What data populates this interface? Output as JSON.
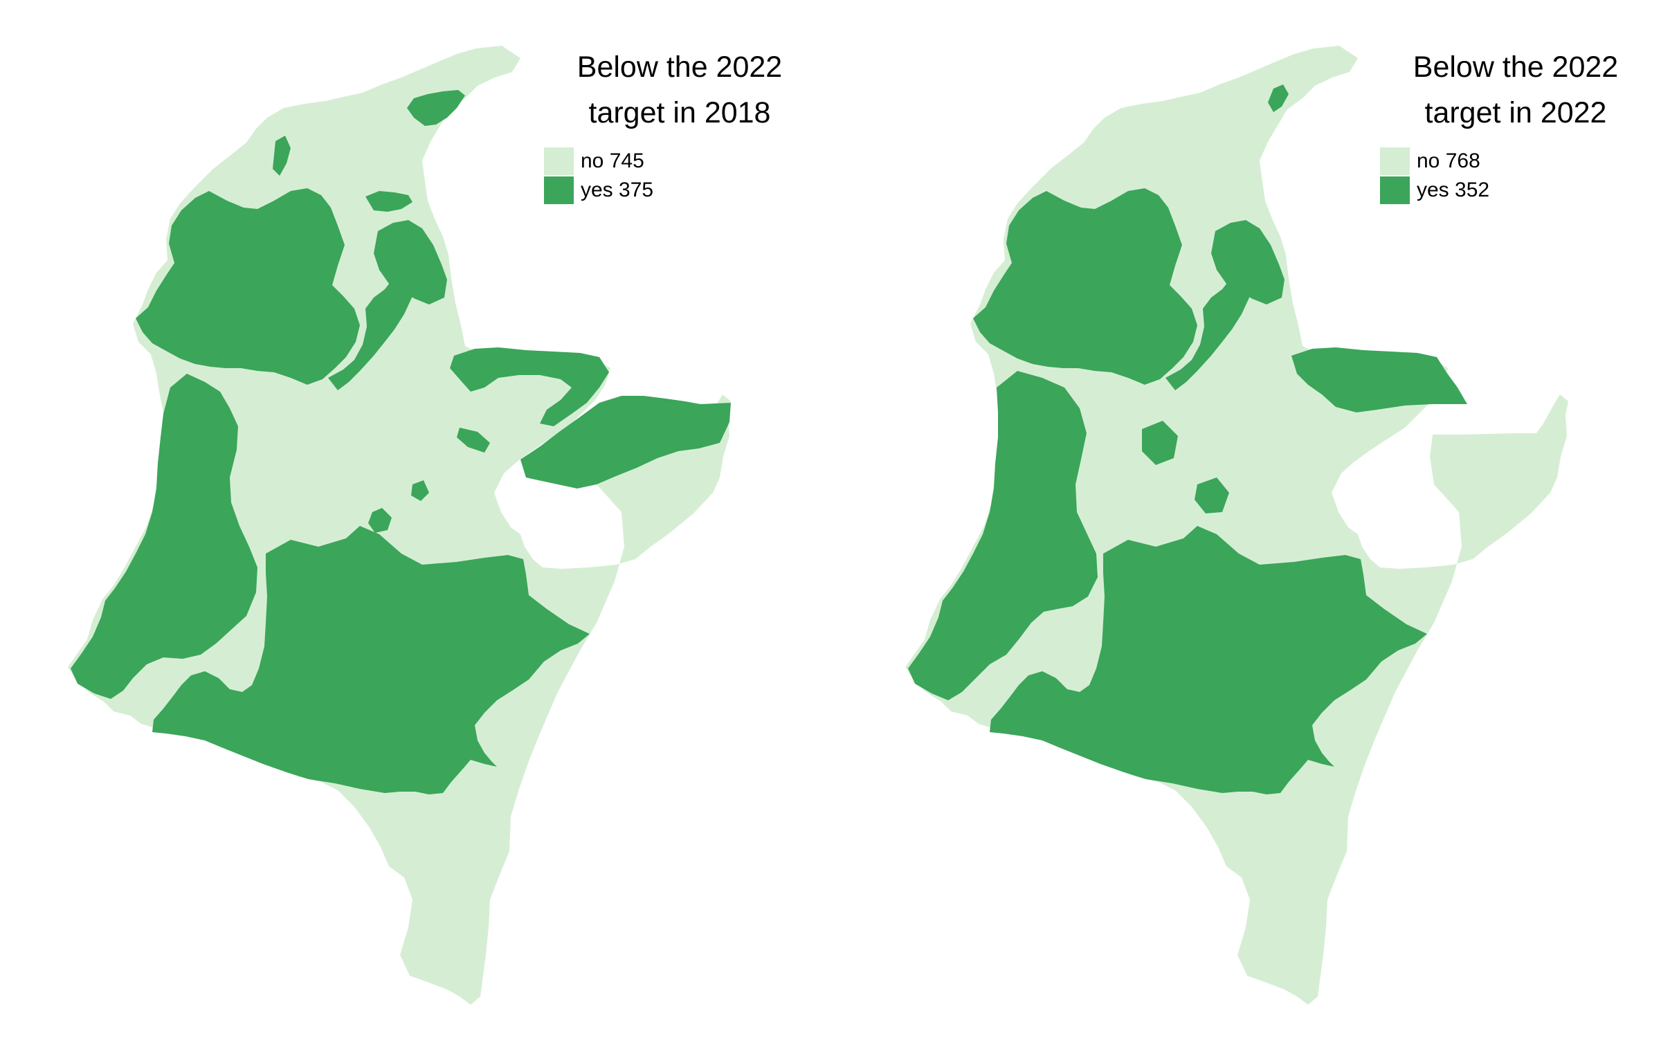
{
  "colors": {
    "no": "#d5eed3",
    "yes": "#3ba55a",
    "background": "#ffffff"
  },
  "maps": [
    {
      "legend": {
        "title_line1": "Below the 2022",
        "title_line2": "target in 2018",
        "items": [
          {
            "key": "no",
            "label": "no",
            "count": "745",
            "text": "no 745"
          },
          {
            "key": "yes",
            "label": "yes",
            "count": "375",
            "text": "yes 375"
          }
        ]
      }
    },
    {
      "legend": {
        "title_line1": "Below the 2022",
        "title_line2": "target in 2022",
        "items": [
          {
            "key": "no",
            "label": "no",
            "count": "768",
            "text": "no 768"
          },
          {
            "key": "yes",
            "label": "yes",
            "count": "352",
            "text": "yes 352"
          }
        ]
      }
    }
  ]
}
